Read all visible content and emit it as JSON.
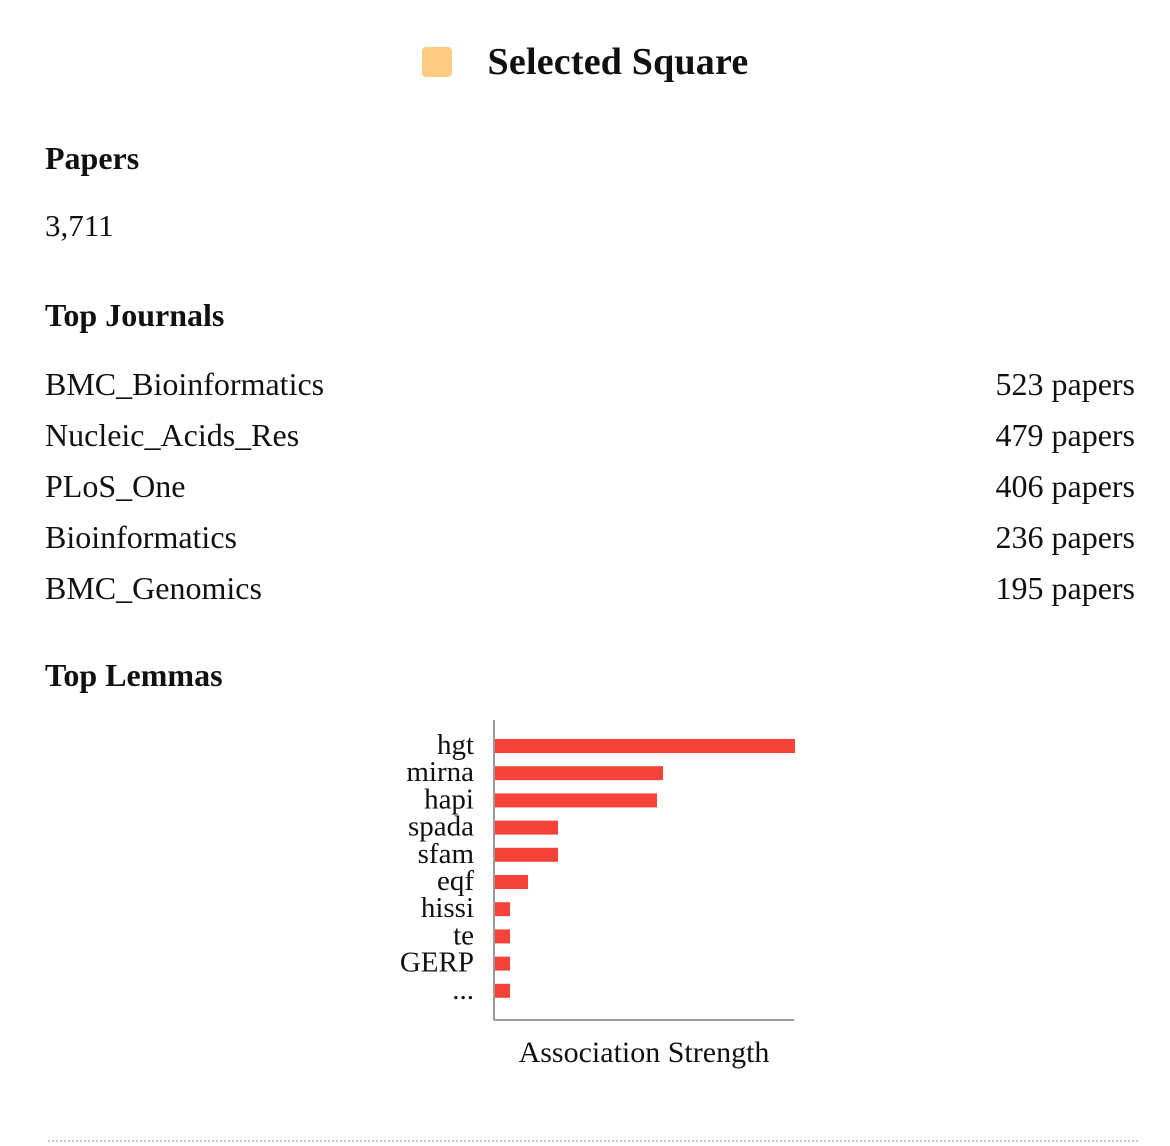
{
  "header": {
    "title": "Selected Square",
    "swatch_color": "#fecb82"
  },
  "papers": {
    "heading": "Papers",
    "count": "3,711"
  },
  "journals": {
    "heading": "Top Journals",
    "items": [
      {
        "name": "BMC_Bioinformatics",
        "count": "523 papers"
      },
      {
        "name": "Nucleic_Acids_Res",
        "count": "479 papers"
      },
      {
        "name": "PLoS_One",
        "count": "406 papers"
      },
      {
        "name": "Bioinformatics",
        "count": "236 papers"
      },
      {
        "name": "BMC_Genomics",
        "count": "195 papers"
      }
    ]
  },
  "lemmas": {
    "heading": "Top Lemmas"
  },
  "chart_data": {
    "type": "bar",
    "orientation": "horizontal",
    "categories": [
      "hgt",
      "mirna",
      "hapi",
      "spada",
      "sfam",
      "eqf",
      "hissi",
      "te",
      "GERP",
      "..."
    ],
    "values": [
      1.0,
      0.56,
      0.54,
      0.21,
      0.21,
      0.11,
      0.05,
      0.05,
      0.05,
      0.05
    ],
    "xlabel": "Association Strength",
    "ylabel": "",
    "xlim": [
      0,
      1
    ],
    "grid": false,
    "bar_color": "#f5433a"
  }
}
